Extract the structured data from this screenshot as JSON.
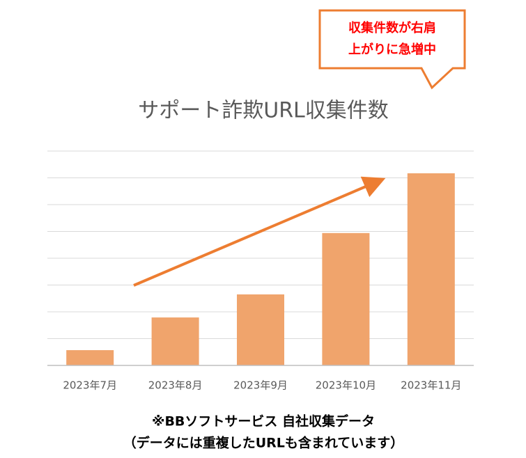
{
  "chart_data": {
    "type": "bar",
    "title": "サポート詐欺URL収集件数",
    "categories": [
      "2023年7月",
      "2023年8月",
      "2023年9月",
      "2023年10月",
      "2023年11月"
    ],
    "values": [
      0.57,
      1.79,
      2.65,
      4.94,
      7.17
    ],
    "color": "#f0a46c",
    "ylim": [
      0,
      8
    ],
    "yticks": [
      0,
      1,
      2,
      3,
      4,
      5,
      6,
      7,
      8
    ],
    "grid": true,
    "annotation": [
      "収集件数が右肩",
      "上がりに急増中"
    ],
    "note": [
      "※BBソフトサービス 自社収集データ",
      "（データには重複したURLも含まれています）"
    ]
  }
}
